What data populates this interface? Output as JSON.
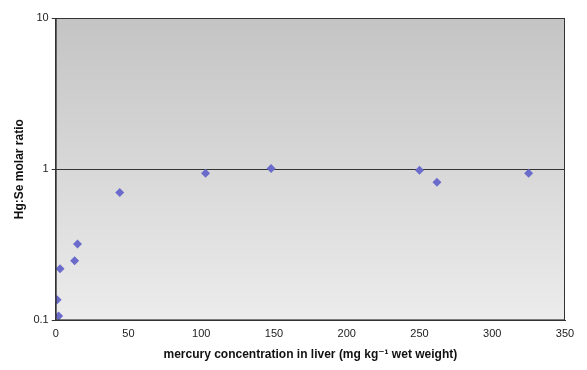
{
  "chart_data": {
    "type": "scatter",
    "x_label": "mercury concentration in liver (mg kg⁻¹ wet weight)",
    "y_label": "Hg:Se molar ratio",
    "x": [
      2,
      1,
      3,
      13,
      15,
      44,
      103,
      148,
      250,
      262,
      325
    ],
    "values": [
      0.107,
      0.137,
      0.22,
      0.248,
      0.32,
      0.7,
      0.94,
      1.01,
      0.985,
      0.82,
      0.94
    ],
    "color": "#6b6bcc",
    "marker": "diamond",
    "xlim": [
      0,
      350
    ],
    "xticks": [
      0,
      50,
      100,
      150,
      200,
      250,
      300,
      350
    ],
    "ylim": [
      0.1,
      10
    ],
    "yticks": [
      0.1,
      1,
      10
    ],
    "log": "y",
    "grid": true
  }
}
